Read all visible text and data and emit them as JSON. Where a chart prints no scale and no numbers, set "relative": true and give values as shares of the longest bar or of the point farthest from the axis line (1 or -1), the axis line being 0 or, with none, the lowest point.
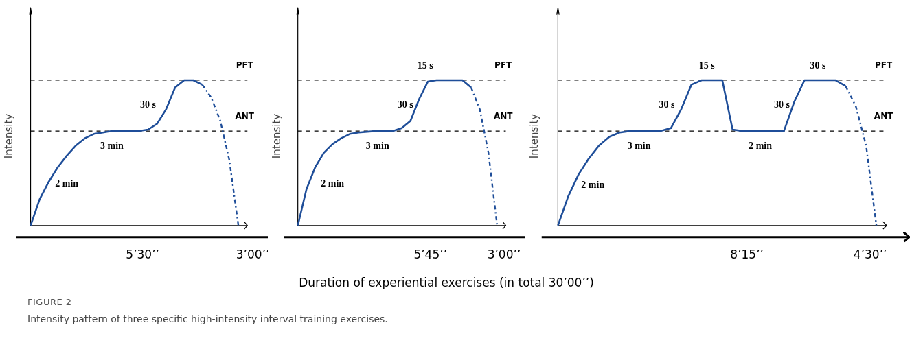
{
  "chart_data": [
    {
      "type": "line",
      "relative": true,
      "ylabel": "Intensity",
      "categories": [
        null,
        null,
        null,
        null,
        null,
        null,
        null,
        null,
        null,
        null,
        null,
        null,
        null,
        null,
        null,
        null,
        null,
        null,
        null,
        null,
        null,
        null,
        null,
        null
      ],
      "series": [
        {
          "color": "#1f4e99",
          "line_style": "solid",
          "values": [
            0,
            0.18,
            0.3,
            0.4,
            0.48,
            0.55,
            0.6,
            0.63,
            0.64,
            0.65,
            0.65,
            0.65,
            0.65,
            0.66,
            0.7,
            0.8,
            0.95,
            1.0,
            1.0,
            0.97,
            null,
            null,
            null,
            null
          ]
        },
        {
          "color": "#1f4e99",
          "line_style": "dashed",
          "values": [
            null,
            null,
            null,
            null,
            null,
            null,
            null,
            null,
            null,
            null,
            null,
            null,
            null,
            null,
            null,
            null,
            null,
            null,
            null,
            0.97,
            0.88,
            0.72,
            0.45,
            0
          ]
        }
      ],
      "ref_lines": [
        {
          "axis": "y",
          "value": 1,
          "label": "PFT",
          "color": "#000000",
          "line_style": "dashed"
        },
        {
          "axis": "y",
          "value": 0.65,
          "label": "ANT",
          "color": "#000000",
          "line_style": "dashed"
        }
      ],
      "annotations": [
        "2 min",
        "3 min",
        "30 s",
        "5’30’’",
        "3’00’’"
      ]
    },
    {
      "type": "line",
      "relative": true,
      "ylabel": "Intensity",
      "xlabel": "Duration of experiential exercises (in total 30’00’’)",
      "categories": [
        null,
        null,
        null,
        null,
        null,
        null,
        null,
        null,
        null,
        null,
        null,
        null,
        null,
        null,
        null,
        null,
        null,
        null,
        null,
        null,
        null,
        null,
        null,
        null
      ],
      "series": [
        {
          "color": "#1f4e99",
          "line_style": "solid",
          "values": [
            0,
            0.25,
            0.4,
            0.5,
            0.56,
            0.6,
            0.63,
            0.64,
            0.645,
            0.65,
            0.65,
            0.65,
            0.67,
            0.72,
            0.87,
            0.99,
            1.0,
            1.0,
            1.0,
            1.0,
            0.95,
            null,
            null,
            null
          ]
        },
        {
          "color": "#1f4e99",
          "line_style": "dashed",
          "values": [
            null,
            null,
            null,
            null,
            null,
            null,
            null,
            null,
            null,
            null,
            null,
            null,
            null,
            null,
            null,
            null,
            null,
            null,
            null,
            null,
            0.95,
            0.8,
            0.5,
            0
          ]
        }
      ],
      "ref_lines": [
        {
          "axis": "y",
          "value": 1,
          "label": "PFT",
          "color": "#000000",
          "line_style": "dashed"
        },
        {
          "axis": "y",
          "value": 0.65,
          "label": "ANT",
          "color": "#000000",
          "line_style": "dashed"
        }
      ],
      "annotations": [
        "2 min",
        "3 min",
        "30 s",
        "15 s",
        "5’45’’",
        "3’00’’"
      ]
    },
    {
      "type": "line",
      "relative": true,
      "ylabel": "Intensity",
      "categories": [
        null,
        null,
        null,
        null,
        null,
        null,
        null,
        null,
        null,
        null,
        null,
        null,
        null,
        null,
        null,
        null,
        null,
        null,
        null,
        null,
        null,
        null,
        null,
        null,
        null,
        null,
        null,
        null,
        null,
        null,
        null,
        null
      ],
      "series": [
        {
          "color": "#1f4e99",
          "line_style": "solid",
          "values": [
            0,
            0.2,
            0.35,
            0.46,
            0.55,
            0.61,
            0.64,
            0.65,
            0.65,
            0.65,
            0.65,
            0.67,
            0.8,
            0.97,
            1.0,
            1.0,
            1.0,
            0.66,
            0.65,
            0.65,
            0.65,
            0.65,
            0.65,
            0.85,
            1.0,
            1.0,
            1.0,
            1.0,
            0.96,
            null,
            null,
            null
          ]
        },
        {
          "color": "#1f4e99",
          "line_style": "dashed",
          "values": [
            null,
            null,
            null,
            null,
            null,
            null,
            null,
            null,
            null,
            null,
            null,
            null,
            null,
            null,
            null,
            null,
            null,
            null,
            null,
            null,
            null,
            null,
            null,
            null,
            null,
            null,
            null,
            null,
            0.96,
            0.82,
            0.55,
            0
          ]
        }
      ],
      "ref_lines": [
        {
          "axis": "y",
          "value": 1,
          "label": "PFT",
          "color": "#000000",
          "line_style": "dashed"
        },
        {
          "axis": "y",
          "value": 0.65,
          "label": "ANT",
          "color": "#000000",
          "line_style": "dashed"
        }
      ],
      "annotations": [
        "2 min",
        "3 min",
        "30 s",
        "15 s",
        "2 min",
        "30 s",
        "30 s",
        "8’15’’",
        "4’30’’"
      ]
    },
    {
      "type": "other",
      "title": "FIGURE 2",
      "subtitle": "Intensity pattern of three specific high-intensity interval training exercises."
    }
  ]
}
